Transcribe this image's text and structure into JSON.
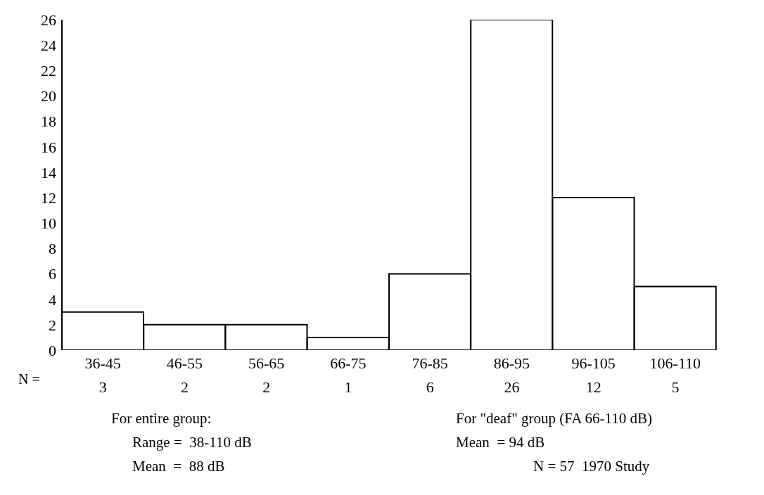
{
  "chart_data": {
    "type": "bar",
    "categories": [
      "36-45",
      "46-55",
      "56-65",
      "66-75",
      "76-85",
      "86-95",
      "96-105",
      "106-110"
    ],
    "values": [
      3,
      2,
      2,
      1,
      6,
      26,
      12,
      5
    ],
    "color": "#ffffff",
    "ylim": [
      0,
      26
    ],
    "yticks": [
      0,
      2,
      4,
      6,
      8,
      10,
      12,
      14,
      16,
      18,
      20,
      22,
      24,
      26
    ],
    "data_labels": true,
    "annotations": [
      "N =",
      "For entire group:",
      "Range =  38-110 dB",
      "Mean  =  88 dB",
      "For \"deaf\" group (FA 66-110 dB)",
      "Mean  = 94 dB",
      "N = 57  1970 Study"
    ]
  }
}
